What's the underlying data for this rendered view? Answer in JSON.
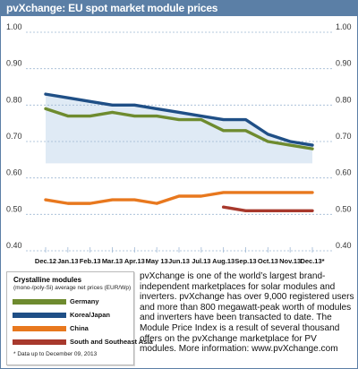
{
  "header": {
    "title": "pvXchange: EU spot market module prices"
  },
  "legend": {
    "title": "Crystalline modules",
    "subtitle": "(mono-/poly-Si) average net prices (EUR/Wp)",
    "note": "* Data up to December 09, 2013"
  },
  "description": "pvXchange is one of the world’s largest brand-independent marketplaces for solar modules and inverters. pvXchange has over 9,000 registered users and more than 800 megawatt-peak worth of modules and inverters have been transacted to date. The Module Price Index is a result of several thousand offers on the pvXchange marketplace for PV modules. More information: www.pvXchange.com",
  "colors": {
    "Germany": "#6e8b2f",
    "Korea/Japan": "#1f4f86",
    "China": "#e8781e",
    "South and Southeast Asia": "#a8392d",
    "header": "#5b7fa6",
    "grid": "#9fb8d4",
    "fill": "#c9dcee"
  },
  "chart_data": {
    "type": "line",
    "categories": [
      "Dec.12",
      "Jan.13",
      "Feb.13",
      "Mar.13",
      "Apr.13",
      "May 13",
      "Jun.13",
      "Jul.13",
      "Aug.13",
      "Sep.13",
      "Oct.13",
      "Nov.13",
      "Dec.13*"
    ],
    "yticks": [
      "1.00",
      "0.90",
      "0.80",
      "0.70",
      "0.60",
      "0.50",
      "0.40"
    ],
    "ylim": [
      0.4,
      1.0
    ],
    "series": [
      {
        "name": "Germany",
        "values": [
          0.79,
          0.77,
          0.77,
          0.78,
          0.77,
          0.77,
          0.76,
          0.76,
          0.73,
          0.73,
          0.7,
          0.69,
          0.68
        ]
      },
      {
        "name": "Korea/Japan",
        "values": [
          0.83,
          0.82,
          0.81,
          0.8,
          0.8,
          0.79,
          0.78,
          0.77,
          0.76,
          0.76,
          0.72,
          0.7,
          0.69
        ]
      },
      {
        "name": "China",
        "values": [
          0.54,
          0.53,
          0.53,
          0.54,
          0.54,
          0.53,
          0.55,
          0.55,
          0.56,
          0.56,
          0.56,
          0.56,
          0.56
        ]
      },
      {
        "name": "South and Southeast Asia",
        "values": [
          null,
          null,
          null,
          null,
          null,
          null,
          null,
          null,
          0.52,
          0.51,
          0.51,
          0.51,
          0.51
        ]
      }
    ],
    "grid": true,
    "legend_position": "bottom-left"
  }
}
